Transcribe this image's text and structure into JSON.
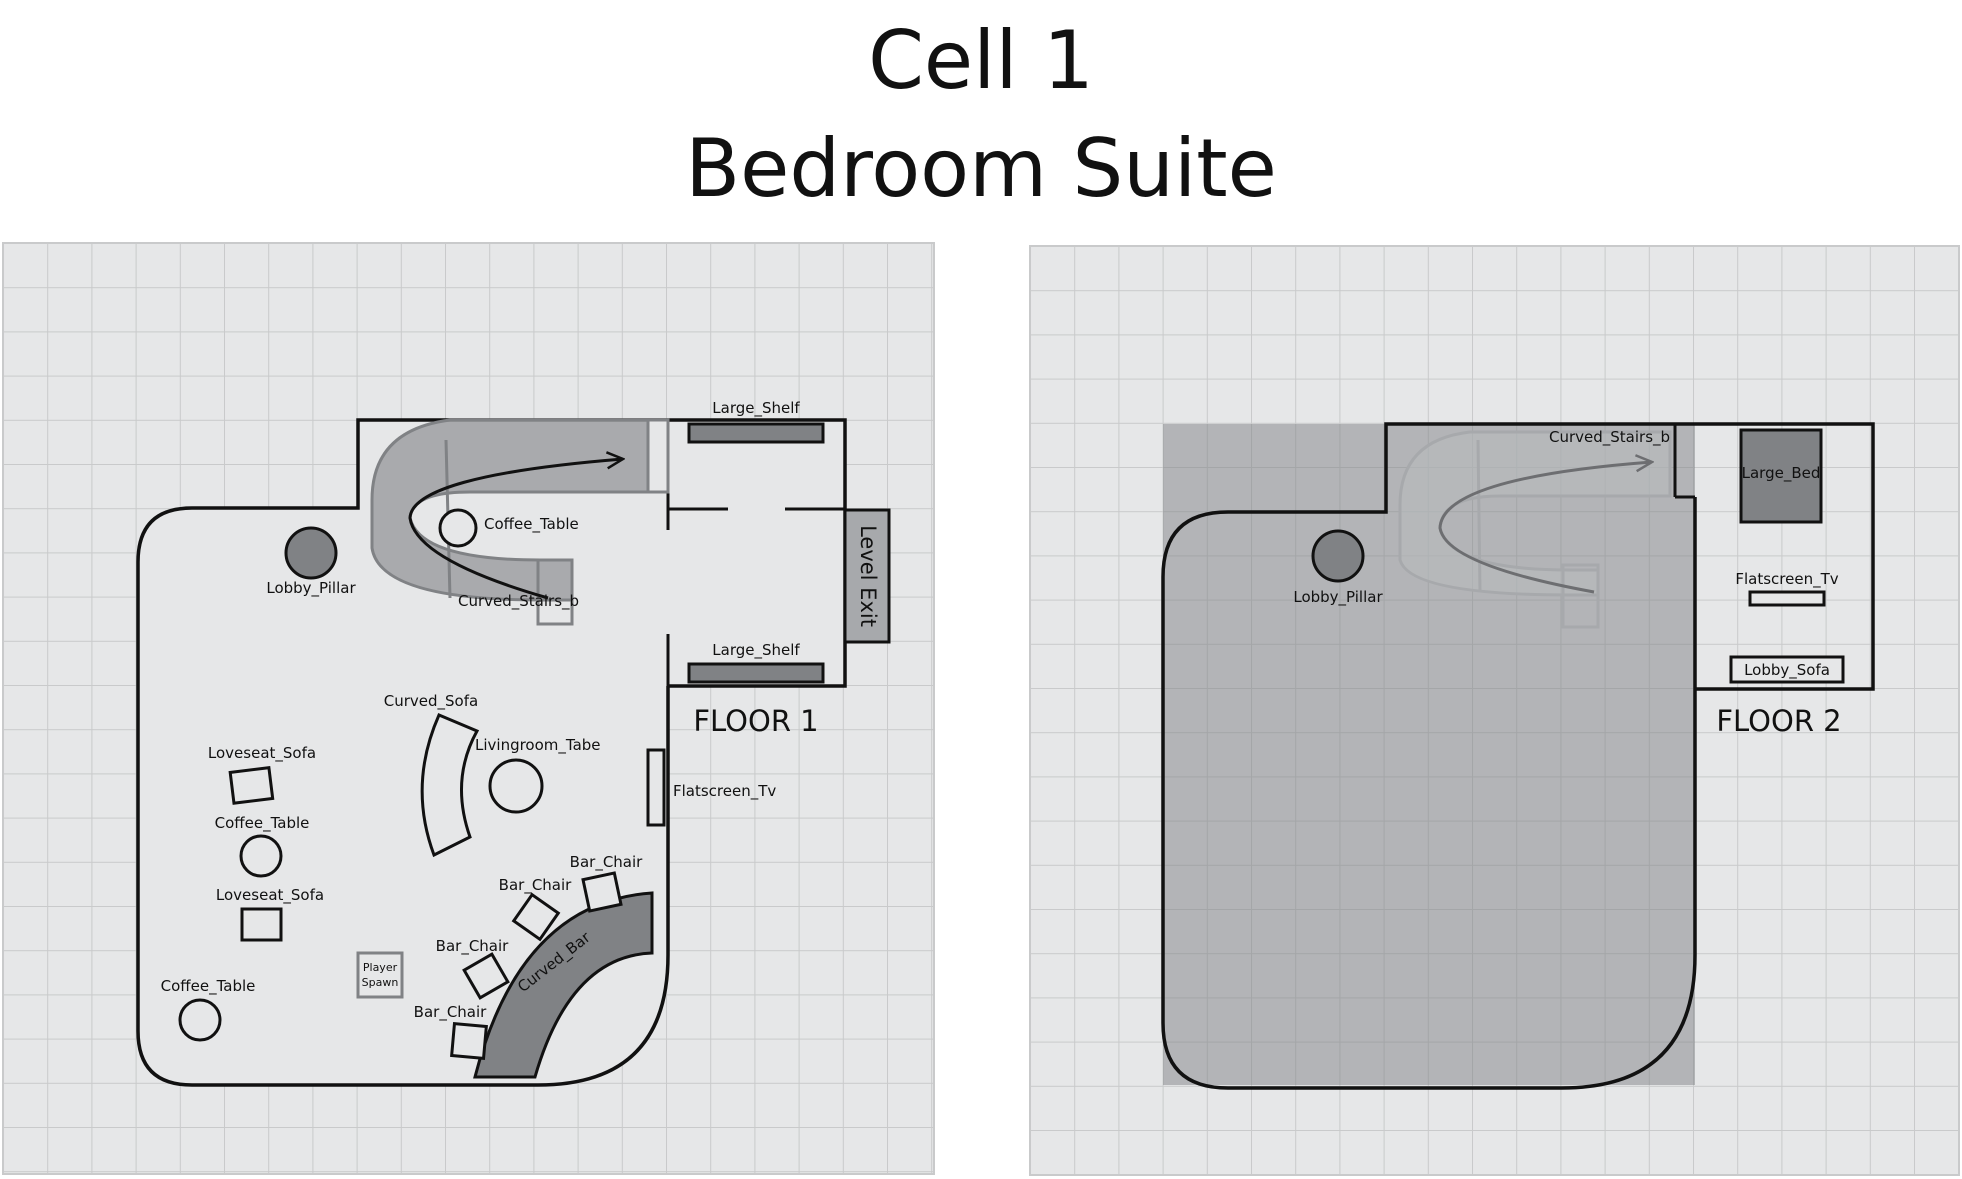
{
  "header": {
    "title_line1": "Cell 1",
    "title_line2": "Bedroom Suite"
  },
  "floor1": {
    "label": "FLOOR 1",
    "labels": {
      "large_shelf_top": "Large_Shelf",
      "large_shelf_bottom": "Large_Shelf",
      "coffee_table_stairs": "Coffee_Table",
      "curved_stairs": "Curved_Stairs_b",
      "lobby_pillar": "Lobby_Pillar",
      "level_exit": "Level Exit",
      "curved_sofa": "Curved_Sofa",
      "livingroom_table": "Livingroom_Tabe",
      "loveseat_sofa_1": "Loveseat_Sofa",
      "coffee_table_1": "Coffee_Table",
      "loveseat_sofa_2": "Loveseat_Sofa",
      "coffee_table_2": "Coffee_Table",
      "flatscreen_tv": "Flatscreen_Tv",
      "bar_chair_1": "Bar_Chair",
      "bar_chair_2": "Bar_Chair",
      "bar_chair_3": "Bar_Chair",
      "bar_chair_4": "Bar_Chair",
      "curved_bar": "Curved_Bar",
      "player_spawn_1": "Player",
      "player_spawn_2": "Spawn"
    }
  },
  "floor2": {
    "label": "FLOOR 2",
    "labels": {
      "curved_stairs": "Curved_Stairs_b",
      "large_bed": "Large_Bed",
      "lobby_pillar": "Lobby_Pillar",
      "flatscreen_tv": "Flatscreen_Tv",
      "lobby_sofa": "Lobby_Sofa"
    }
  },
  "colors": {
    "grid_bg": "#e6e7e8",
    "grid_line": "#c9cacb",
    "wall": "#111111",
    "dark_fill": "#808285",
    "stairs_fill": "#9d9fa2",
    "floor2_overlay": "#808285"
  }
}
